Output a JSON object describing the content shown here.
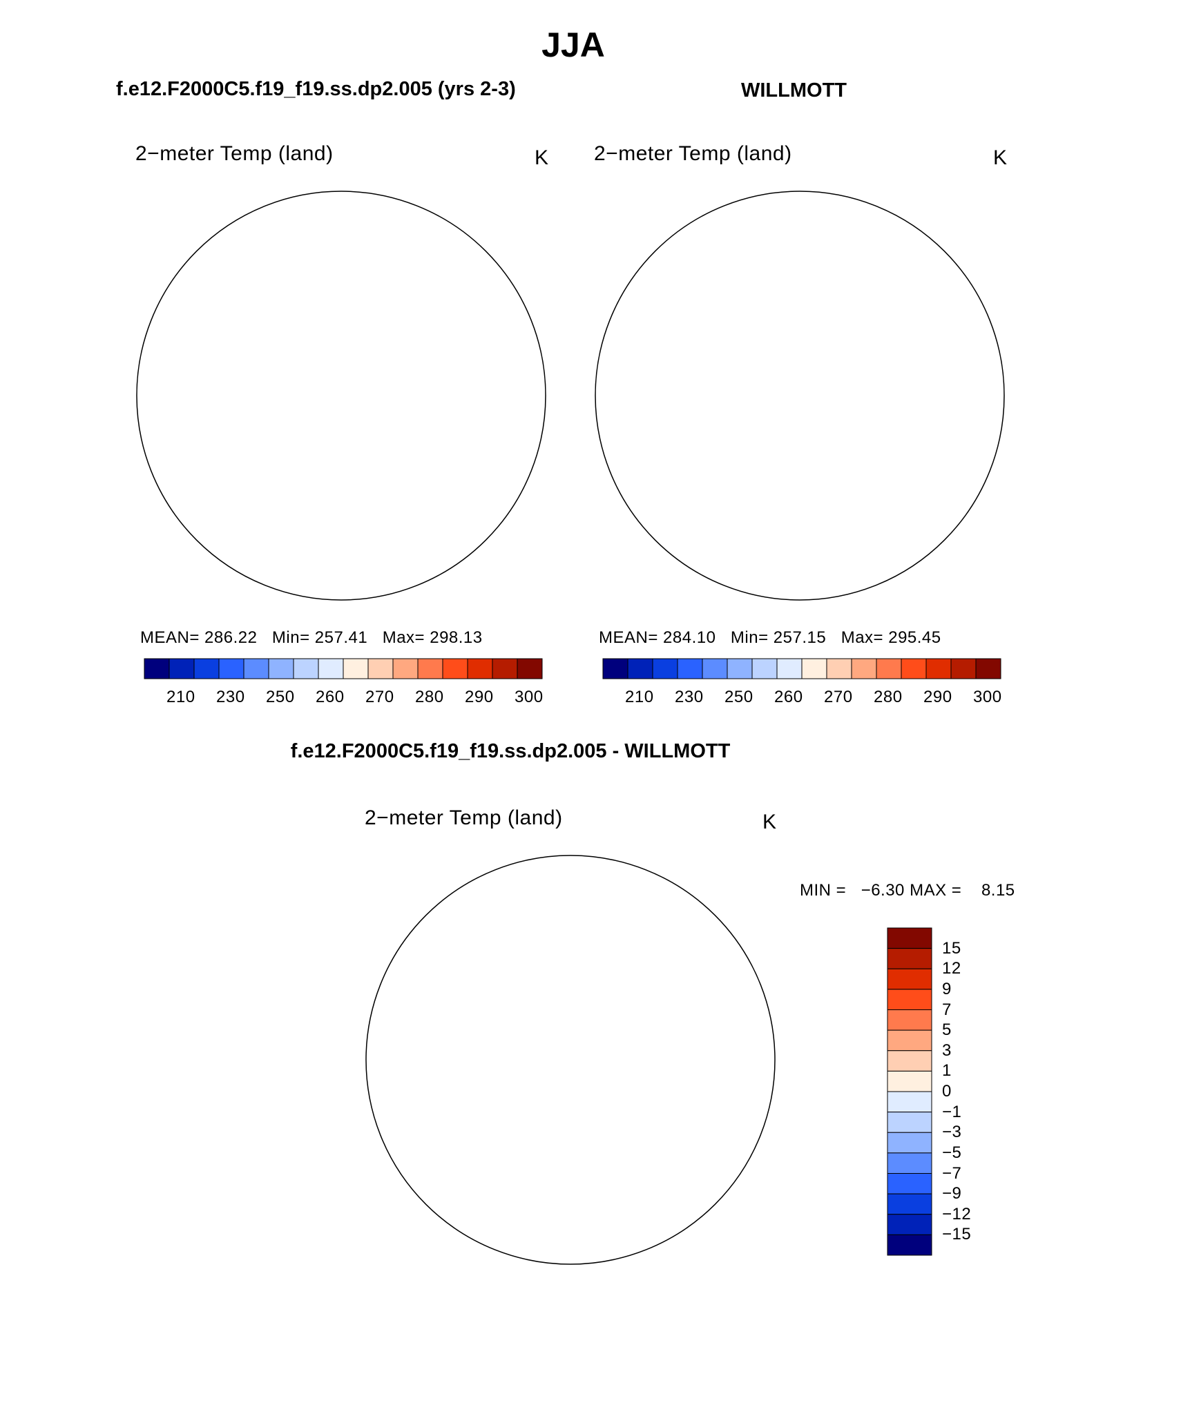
{
  "title": "JJA",
  "panels": {
    "left": {
      "case": "f.e12.F2000C5.f19_f19.ss.dp2.005 (yrs 2-3)",
      "variable": "2−meter Temp (land)",
      "units": "K",
      "stats": "MEAN= 286.22   Min= 257.41   Max= 298.13"
    },
    "right": {
      "case": "WILLMOTT",
      "variable": "2−meter Temp (land)",
      "units": "K",
      "stats": "MEAN= 284.10   Min= 257.15   Max= 295.45"
    },
    "diff": {
      "case": "f.e12.F2000C5.f19_f19.ss.dp2.005 - WILLMOTT",
      "variable": "2−meter Temp (land)",
      "units": "K",
      "minmax": "MIN =   −6.30 MAX =    8.15"
    }
  },
  "colorbar_abs": {
    "labels": [
      "210",
      "230",
      "250",
      "260",
      "270",
      "280",
      "290",
      "300"
    ],
    "colors": [
      "#00007d",
      "#0022b8",
      "#0a3fe0",
      "#2a62ff",
      "#5c8cff",
      "#8fb3ff",
      "#bcd3ff",
      "#e0ecff",
      "#fff0e0",
      "#ffcfb3",
      "#ffa880",
      "#ff7a4d",
      "#ff4d1a",
      "#e02d00",
      "#b51c00",
      "#820800"
    ]
  },
  "colorbar_diff": {
    "labels": [
      "15",
      "12",
      "9",
      "7",
      "5",
      "3",
      "1",
      "0",
      "−1",
      "−3",
      "−5",
      "−7",
      "−9",
      "−12",
      "−15"
    ],
    "colors": [
      "#820800",
      "#b51c00",
      "#e02d00",
      "#ff4d1a",
      "#ff7a4d",
      "#ffa880",
      "#ffcfb3",
      "#fff0e0",
      "#e0ecff",
      "#bcd3ff",
      "#8fb3ff",
      "#5c8cff",
      "#2a62ff",
      "#0a3fe0",
      "#0022b8",
      "#00007d"
    ]
  },
  "map_colors": {
    "model_land": "#f05a28",
    "model_warm": "#e23d12",
    "model_cool": "#f89a72",
    "greenland_model": "#fde3d4",
    "greenland_ice": "#c8dcff",
    "obs_land": "#f25f2c",
    "obs_warm": "#e7471a",
    "obs_cool": "#f9ad8c",
    "diff_pos": "#fcc4a8",
    "diff_pos_strong": "#f78f6a",
    "diff_neg": "#c7dbff",
    "diff_neg_strong": "#8fb3ff"
  }
}
